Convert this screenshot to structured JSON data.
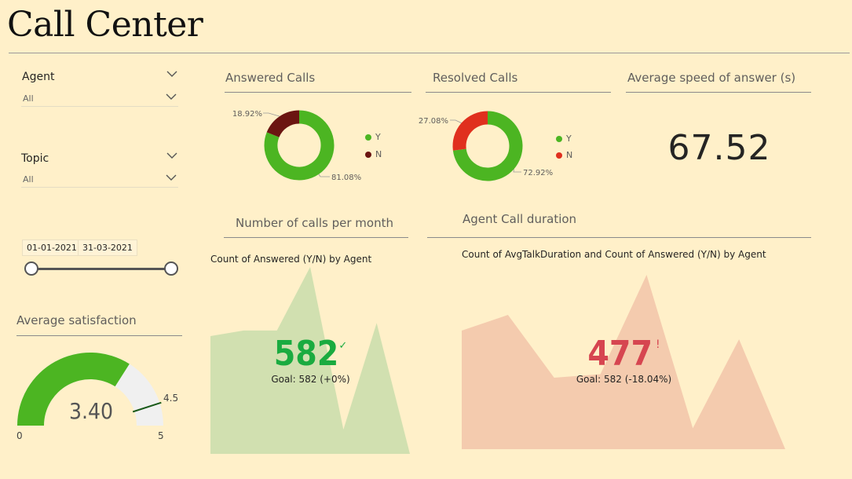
{
  "header": {
    "title": "Call Center"
  },
  "filters": {
    "agent": {
      "label": "Agent",
      "value": "All"
    },
    "topic": {
      "label": "Topic",
      "value": "All"
    },
    "date_range": {
      "start": "01-01-2021",
      "end": "31-03-2021"
    }
  },
  "satisfaction": {
    "title": "Average satisfaction",
    "value": "3.40",
    "min_label": "0",
    "max_label": "5",
    "target_label": "4.5",
    "value_num": 3.4,
    "min": 0,
    "max": 5,
    "target": 4.5,
    "fill_color": "#4CB522",
    "track_color": "#F0F0F0"
  },
  "answered_calls": {
    "title": "Answered Calls",
    "slices": [
      {
        "name": "Y",
        "value": 81.08,
        "label": "81.08%",
        "color": "#4CB522"
      },
      {
        "name": "N",
        "value": 18.92,
        "label": "18.92%",
        "color": "#6B1511"
      }
    ]
  },
  "resolved_calls": {
    "title": "Resolved Calls",
    "slices": [
      {
        "name": "Y",
        "value": 72.92,
        "label": "72.92%",
        "color": "#4CB522"
      },
      {
        "name": "N",
        "value": 27.08,
        "label": "27.08%",
        "color": "#E0301E"
      }
    ]
  },
  "speed_of_answer": {
    "title": "Average speed of answer (s)",
    "value": "67.52"
  },
  "calls_per_month": {
    "title": "Number of calls per month",
    "subtitle": "Count of Answered (Y/N) by Agent",
    "kpi_value": "582",
    "kpi_mark": "✓",
    "goal": "Goal: 582 (+0%)",
    "value_color": "#1AAB40",
    "area_color": "#D1E0B0",
    "series": [
      0.63,
      0.66,
      0.66,
      1.0,
      0.13,
      0.7,
      0.0
    ]
  },
  "agent_call_duration": {
    "title": "Agent Call duration",
    "subtitle": "Count of AvgTalkDuration and Count of Answered (Y/N) by Agent",
    "kpi_value": "477",
    "kpi_mark": "!",
    "goal": "Goal: 582 (-18.04%)",
    "value_color": "#D64550",
    "area_color": "#F4CBAE",
    "series": [
      0.68,
      0.77,
      0.41,
      0.43,
      1.0,
      0.12,
      0.63,
      0.0
    ]
  },
  "chart_data": [
    {
      "type": "pie",
      "title": "Answered Calls",
      "categories": [
        "Y",
        "N"
      ],
      "values": [
        81.08,
        18.92
      ],
      "legend": "right"
    },
    {
      "type": "pie",
      "title": "Resolved Calls",
      "categories": [
        "Y",
        "N"
      ],
      "values": [
        72.92,
        27.08
      ],
      "legend": "right"
    },
    {
      "type": "area",
      "title": "Count of Answered (Y/N) by Agent",
      "kpi": 582,
      "goal": 582
    },
    {
      "type": "area",
      "title": "Count of AvgTalkDuration and Count of Answered (Y/N) by Agent",
      "kpi": 477,
      "goal": 582
    }
  ]
}
